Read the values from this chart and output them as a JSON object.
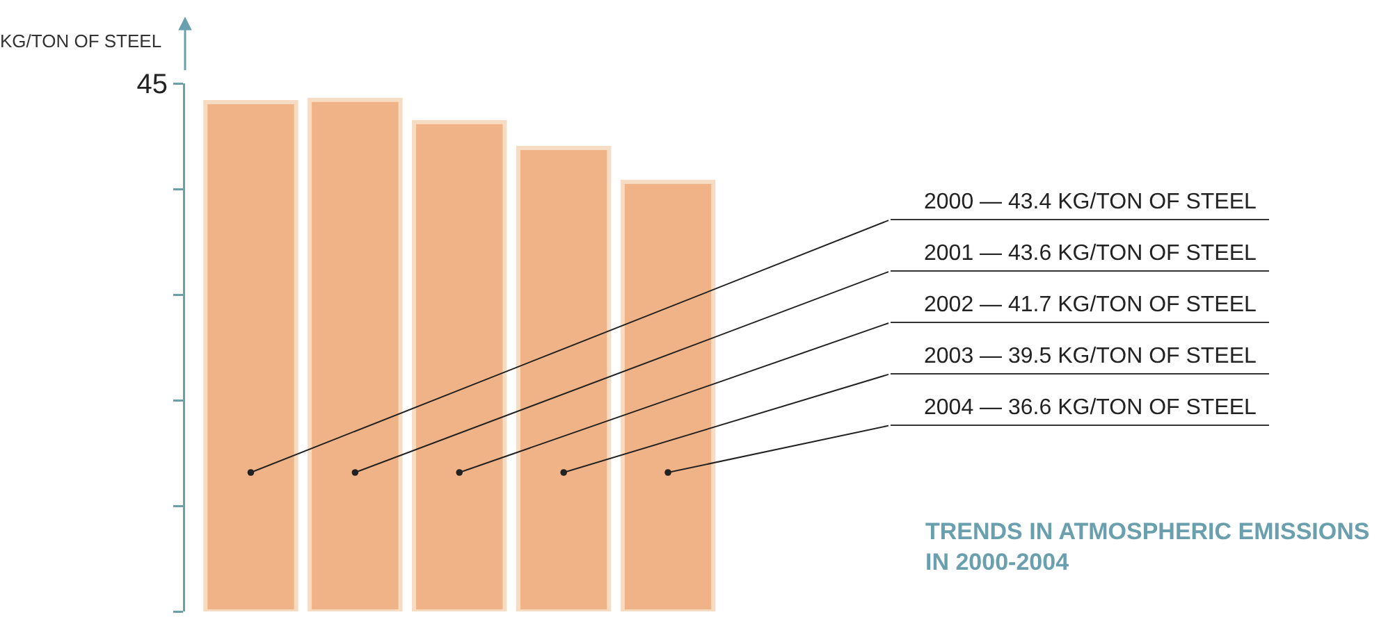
{
  "chart_data": {
    "type": "bar",
    "title": "TRENDS IN ATMOSPHERIC EMISSIONS IN 2000-2004",
    "ylabel": "KG/TON OF STEEL",
    "categories": [
      null,
      null,
      null,
      null,
      null
    ],
    "values": [
      43.4,
      43.6,
      41.7,
      39.5,
      36.6
    ],
    "annotations": [
      "2000 — 43.4 KG/TON OF STEEL",
      "2001 — 43.6 KG/TON OF STEEL",
      "2002 — 41.7 KG/TON OF STEEL",
      "2003 — 39.5 KG/TON OF STEEL",
      "2004 — 36.6 KG/TON OF STEEL"
    ],
    "color": "#f0b387",
    "ylim": [
      0,
      45
    ],
    "yticks": [
      {
        "value": 0,
        "label": null
      },
      {
        "value": 9,
        "label": null
      },
      {
        "value": 18,
        "label": null
      },
      {
        "value": 27,
        "label": null
      },
      {
        "value": 36,
        "label": null
      },
      45
    ],
    "tick_labels": "y",
    "grid": false,
    "legend": false
  }
}
